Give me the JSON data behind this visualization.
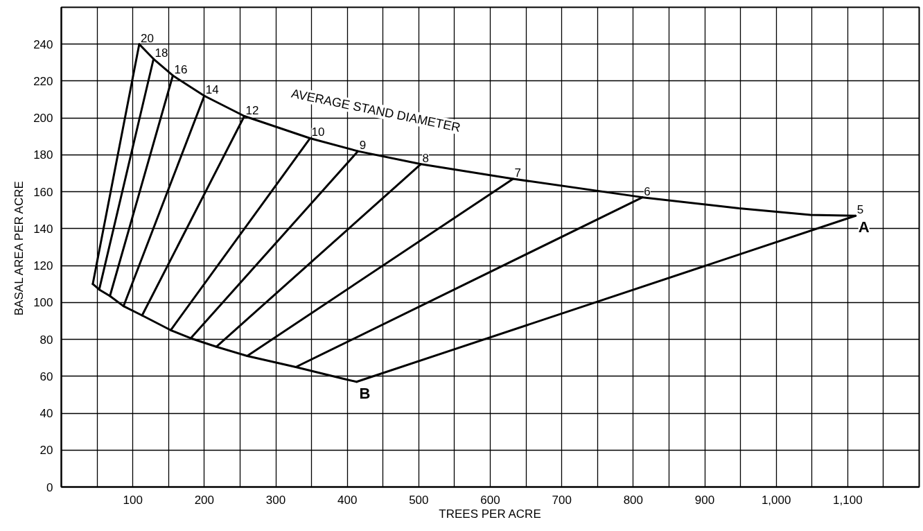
{
  "chart_data": {
    "type": "line",
    "xlabel": "TREES PER ACRE",
    "ylabel": "BASAL AREA PER ACRE",
    "xlim": [
      0,
      1200
    ],
    "ylim": [
      0,
      260
    ],
    "xticks": [
      {
        "value": 50,
        "label": null
      },
      100,
      {
        "value": 150,
        "label": null
      },
      200,
      {
        "value": 250,
        "label": null
      },
      300,
      {
        "value": 350,
        "label": null
      },
      400,
      {
        "value": 450,
        "label": null
      },
      500,
      {
        "value": 550,
        "label": null
      },
      600,
      {
        "value": 650,
        "label": null
      },
      700,
      {
        "value": 750,
        "label": null
      },
      800,
      {
        "value": 850,
        "label": null
      },
      900,
      {
        "value": 950,
        "label": null
      },
      {
        "value": 1000,
        "label": "1,000"
      },
      {
        "value": 1050,
        "label": null
      },
      {
        "value": 1100,
        "label": "1,100"
      },
      {
        "value": 1150,
        "label": null
      }
    ],
    "yticks": [
      0,
      20,
      40,
      60,
      80,
      100,
      120,
      140,
      160,
      180,
      200,
      220,
      240
    ],
    "grid": true,
    "marker": "none",
    "line_style": "solid",
    "series": [
      {
        "color": "#000000",
        "x": [
          109,
          129,
          156,
          200,
          256,
          348,
          415,
          503,
          632,
          813,
          948,
          1048,
          1111
        ],
        "values": [
          240,
          232,
          223,
          212,
          201,
          189,
          182,
          175,
          167,
          157,
          151,
          147.5,
          147
        ]
      },
      {
        "color": "#000000",
        "x": [
          44,
          53,
          68,
          87,
          113,
          153,
          181,
          217,
          260,
          328,
          394,
          413
        ],
        "values": [
          110,
          107,
          103.5,
          98,
          93,
          85,
          80.6,
          76,
          71,
          65,
          58.7,
          57
        ]
      },
      {
        "color": "#000000",
        "x": [
          413,
          1111
        ],
        "values": [
          57,
          147
        ]
      },
      {
        "color": "#000000",
        "x": [
          44,
          109
        ],
        "values": [
          110,
          240
        ]
      },
      {
        "color": "#000000",
        "x": [
          53,
          129
        ],
        "values": [
          107,
          232
        ]
      },
      {
        "color": "#000000",
        "x": [
          68,
          156
        ],
        "values": [
          103.5,
          223
        ]
      },
      {
        "color": "#000000",
        "x": [
          87,
          200
        ],
        "values": [
          98,
          212
        ]
      },
      {
        "color": "#000000",
        "x": [
          113,
          256
        ],
        "values": [
          93,
          201
        ]
      },
      {
        "color": "#000000",
        "x": [
          153,
          348
        ],
        "values": [
          85,
          189
        ]
      },
      {
        "color": "#000000",
        "x": [
          181,
          415
        ],
        "values": [
          80.6,
          182
        ]
      },
      {
        "color": "#000000",
        "x": [
          217,
          503
        ],
        "values": [
          76,
          175
        ]
      },
      {
        "color": "#000000",
        "x": [
          260,
          632
        ],
        "values": [
          71,
          167
        ]
      },
      {
        "color": "#000000",
        "x": [
          328,
          813
        ],
        "values": [
          65,
          157
        ]
      }
    ],
    "annotations": [
      {
        "text": "20",
        "x": 109,
        "y": 240
      },
      {
        "text": "18",
        "x": 129,
        "y": 232
      },
      {
        "text": "16",
        "x": 156,
        "y": 223
      },
      {
        "text": "14",
        "x": 200,
        "y": 212
      },
      {
        "text": "12",
        "x": 256,
        "y": 201
      },
      {
        "text": "10",
        "x": 348,
        "y": 189
      },
      {
        "text": "9",
        "x": 415,
        "y": 182
      },
      {
        "text": "8",
        "x": 503,
        "y": 175
      },
      {
        "text": "7",
        "x": 632,
        "y": 167
      },
      {
        "text": "6",
        "x": 813,
        "y": 157
      },
      {
        "text": "5",
        "x": 1111,
        "y": 147
      },
      {
        "text": "A",
        "x": 1111,
        "y": 147
      },
      {
        "text": "B",
        "x": 413,
        "y": 57
      },
      {
        "text": "AVERAGE STAND DIAMETER",
        "x": 440,
        "y": 180
      }
    ]
  }
}
